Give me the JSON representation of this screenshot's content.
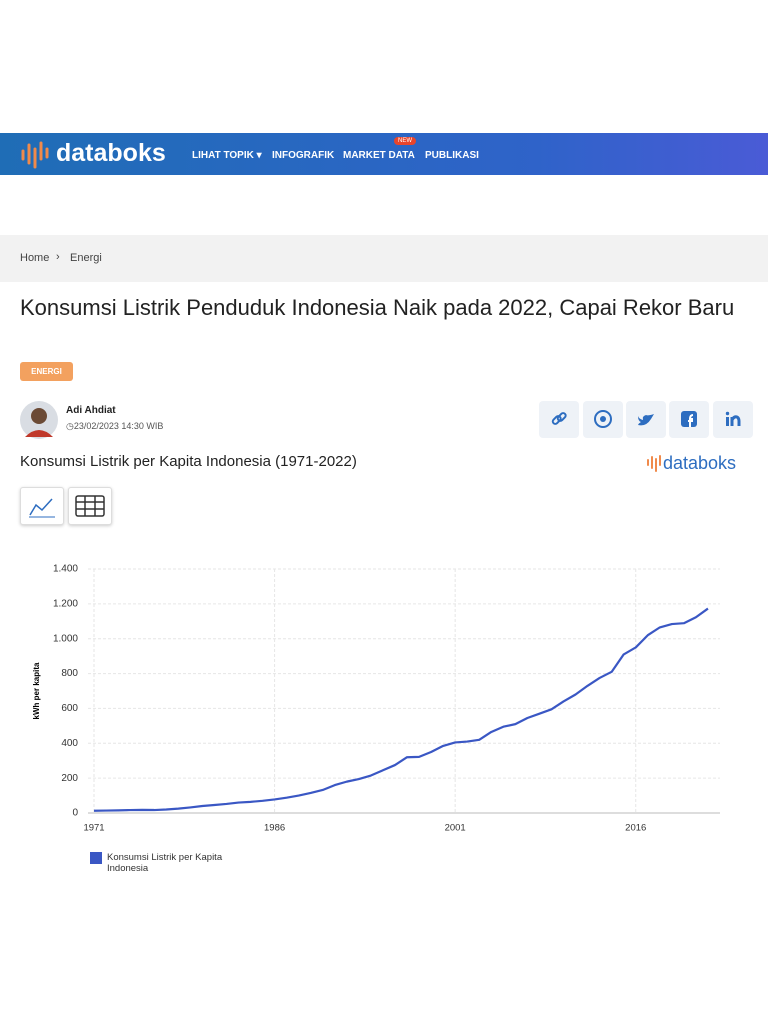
{
  "header": {
    "logo": "databoks",
    "nav": [
      "LIHAT TOPIK",
      "INFOGRAFIK",
      "MARKET DATA",
      "PUBLIKASI"
    ],
    "badge": "NEW"
  },
  "breadcrumb": [
    "Home",
    "Energi"
  ],
  "article": {
    "title": "Konsumsi Listrik Penduduk Indonesia Naik pada 2022, Capai Rekor Baru",
    "tag": "ENERGI",
    "author": "Adi Ahdiat",
    "date": "23/02/2023 14:30 WIB"
  },
  "brand": "databoks",
  "chart_data": {
    "type": "line",
    "title": "Konsumsi Listrik per Kapita Indonesia (1971-2022)",
    "y_label": "kWh per kapita",
    "x": [
      1971,
      1972,
      1973,
      1974,
      1975,
      1976,
      1977,
      1978,
      1979,
      1980,
      1981,
      1982,
      1983,
      1984,
      1985,
      1986,
      1987,
      1988,
      1989,
      1990,
      1991,
      1992,
      1993,
      1994,
      1995,
      1996,
      1997,
      1998,
      1999,
      2000,
      2001,
      2002,
      2003,
      2004,
      2005,
      2006,
      2007,
      2008,
      2009,
      2010,
      2011,
      2012,
      2013,
      2014,
      2015,
      2016,
      2017,
      2018,
      2019,
      2020,
      2021,
      2022
    ],
    "series": [
      {
        "name": "Konsumsi Listrik per Kapita Indonesia",
        "color": "#3a57c4",
        "values": [
          13,
          14,
          15,
          17,
          18,
          17,
          20,
          25,
          32,
          40,
          46,
          52,
          60,
          64,
          70,
          78,
          88,
          100,
          115,
          132,
          160,
          180,
          195,
          215,
          245,
          275,
          320,
          322,
          350,
          385,
          405,
          410,
          420,
          465,
          495,
          510,
          545,
          570,
          595,
          640,
          680,
          730,
          775,
          810,
          910,
          950,
          1020,
          1065,
          1084,
          1089,
          1123,
          1173
        ]
      }
    ],
    "xlim": [
      1970.5,
      2023
    ],
    "xticks": [
      1971,
      1986,
      2001,
      2016
    ],
    "ylim": [
      0,
      1400
    ],
    "yticks": [
      0,
      200,
      400,
      600,
      800,
      {
        "value": 1000,
        "label": "1.000"
      },
      {
        "value": 1200,
        "label": "1.200"
      },
      {
        "value": 1400,
        "label": "1.400"
      }
    ],
    "grid": true
  }
}
